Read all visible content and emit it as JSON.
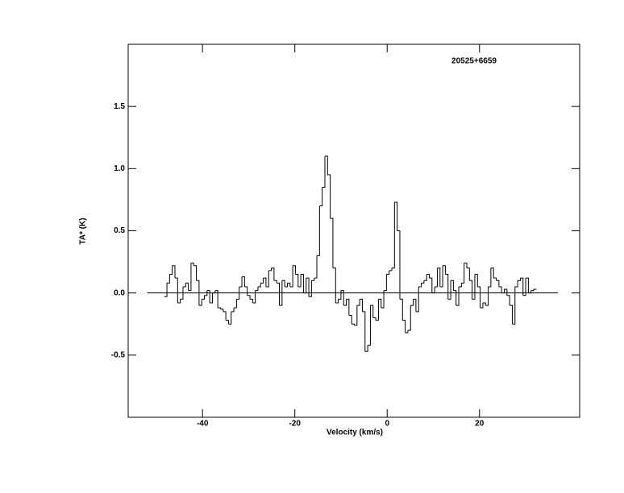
{
  "chart_data": {
    "type": "step",
    "title": "20525+6659",
    "x_label": "Velocity (km/s)",
    "y_label": "TA* (K)",
    "xlim": [
      -56.1,
      41.7
    ],
    "ylim": [
      -1.0,
      2.0
    ],
    "xticks": [
      -40,
      -20,
      0,
      20
    ],
    "yticks": [
      -0.5,
      {
        "value": 0,
        "label": "0.0"
      },
      0.5,
      {
        "value": 1,
        "label": "1.0"
      },
      1.5
    ],
    "color": "#000000",
    "zero_line": {
      "y": 0,
      "x": [
        -52,
        37
      ]
    },
    "x": [
      -48.0,
      -47.42,
      -46.84,
      -46.26,
      -45.68,
      -45.1,
      -44.52,
      -43.94,
      -43.36,
      -42.78,
      -42.2,
      -41.62,
      -41.04,
      -40.46,
      -39.88,
      -39.3,
      -38.72,
      -38.14,
      -37.56,
      -36.98,
      -36.4,
      -35.82,
      -35.24,
      -34.66,
      -34.08,
      -33.5,
      -32.92,
      -32.34,
      -31.76,
      -31.18,
      -30.6,
      -30.02,
      -29.44,
      -28.86,
      -28.28,
      -27.7,
      -27.12,
      -26.54,
      -25.96,
      -25.38,
      -24.8,
      -24.22,
      -23.64,
      -23.06,
      -22.48,
      -21.9,
      -21.32,
      -20.74,
      -20.16,
      -19.58,
      -19.0,
      -18.42,
      -17.84,
      -17.26,
      -16.68,
      -16.1,
      -15.52,
      -14.94,
      -14.36,
      -13.78,
      -13.2,
      -12.62,
      -12.04,
      -11.46,
      -10.88,
      -10.3,
      -9.72,
      -9.14,
      -8.56,
      -7.98,
      -7.4,
      -6.82,
      -6.24,
      -5.66,
      -5.08,
      -4.5,
      -3.92,
      -3.34,
      -2.76,
      -2.18,
      -1.6,
      -1.02,
      -0.44,
      0.14,
      0.72,
      1.3,
      1.88,
      2.46,
      3.04,
      3.62,
      4.2,
      4.78,
      5.36,
      5.94,
      6.52,
      7.1,
      7.68,
      8.26,
      8.84,
      9.42,
      10.0,
      10.58,
      11.16,
      11.74,
      12.32,
      12.9,
      13.48,
      14.06,
      14.64,
      15.22,
      15.8,
      16.38,
      16.96,
      17.54,
      18.12,
      18.7,
      19.28,
      19.86,
      20.44,
      21.02,
      21.6,
      22.18,
      22.76,
      23.34,
      23.92,
      24.5,
      25.08,
      25.66,
      26.24,
      26.82,
      27.4,
      27.98,
      28.56,
      29.14,
      29.72,
      30.3,
      30.88,
      31.46,
      32.04
    ],
    "values": [
      -0.03,
      0.08,
      0.15,
      0.22,
      0.12,
      -0.08,
      -0.05,
      0.05,
      0.08,
      0.02,
      0.24,
      0.22,
      0.1,
      -0.1,
      -0.05,
      -0.02,
      0.02,
      -0.08,
      0.0,
      0.02,
      -0.12,
      -0.13,
      -0.15,
      -0.22,
      -0.25,
      -0.15,
      -0.12,
      -0.05,
      0.05,
      0.13,
      0.05,
      -0.02,
      -0.05,
      -0.08,
      0.02,
      0.05,
      0.08,
      0.12,
      0.05,
      0.18,
      0.2,
      0.1,
      0.08,
      -0.1,
      0.1,
      0.05,
      0.08,
      0.05,
      0.22,
      0.15,
      0.05,
      0.15,
      0.0,
      0.12,
      -0.03,
      0.1,
      0.12,
      0.3,
      0.7,
      0.85,
      1.1,
      0.95,
      0.6,
      0.2,
      -0.08,
      -0.05,
      0.02,
      -0.1,
      -0.05,
      -0.18,
      -0.25,
      -0.26,
      -0.1,
      -0.05,
      -0.15,
      -0.47,
      -0.42,
      -0.1,
      -0.2,
      -0.22,
      -0.05,
      -0.12,
      0.02,
      0.15,
      0.18,
      0.2,
      0.73,
      0.5,
      -0.05,
      -0.22,
      -0.32,
      -0.3,
      -0.1,
      -0.05,
      -0.15,
      0.05,
      0.08,
      0.1,
      0.15,
      0.12,
      0.0,
      0.05,
      0.2,
      0.05,
      0.22,
      0.15,
      -0.05,
      0.1,
      0.02,
      -0.1,
      0.05,
      0.08,
      0.24,
      0.2,
      0.1,
      -0.05,
      0.15,
      0.05,
      -0.12,
      -0.08,
      -0.1,
      0.05,
      0.2,
      0.12,
      0.1,
      0.05,
      0.0,
      0.03,
      -0.02,
      -0.1,
      -0.25,
      0.05,
      0.1,
      0.12,
      -0.02,
      0.12,
      0.0,
      0.02,
      0.03
    ]
  }
}
